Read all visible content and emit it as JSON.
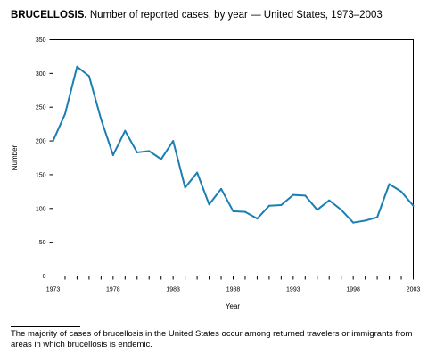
{
  "chart_data": {
    "type": "line",
    "title_bold": "BRUCELLOSIS.",
    "title_rest": "Number of reported cases, by year — United States, 1973–2003",
    "xlabel": "Year",
    "ylabel": "Number",
    "xlim": [
      1973,
      2003
    ],
    "ylim": [
      0,
      350
    ],
    "xticks": [
      1973,
      1978,
      1983,
      1988,
      1993,
      1998,
      2003
    ],
    "yticks": [
      0,
      50,
      100,
      150,
      200,
      250,
      300,
      350
    ],
    "grid": false,
    "line_color": "#1b7fb3",
    "series": [
      {
        "x": [
          1973,
          1974,
          1975,
          1976,
          1977,
          1978,
          1979,
          1980,
          1981,
          1982,
          1983,
          1984,
          1985,
          1986,
          1987,
          1988,
          1989,
          1990,
          1991,
          1992,
          1993,
          1994,
          1995,
          1996,
          1997,
          1998,
          1999,
          2000,
          2001,
          2002,
          2003
        ],
        "values": [
          200,
          240,
          310,
          296,
          232,
          179,
          215,
          183,
          185,
          173,
          200,
          131,
          153,
          106,
          129,
          96,
          95,
          85,
          104,
          105,
          120,
          119,
          98,
          112,
          98,
          79,
          82,
          87,
          136,
          125,
          104
        ]
      }
    ]
  },
  "footnote": "The majority of cases of brucellosis in the United States occur among returned travelers or immigrants from areas in which brucellosis is endemic."
}
